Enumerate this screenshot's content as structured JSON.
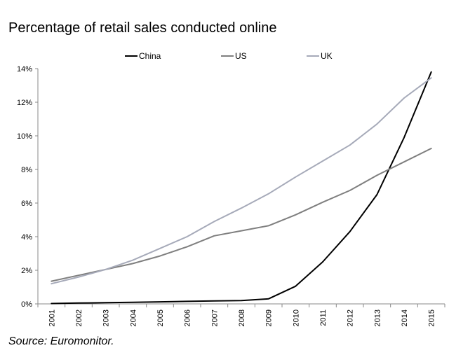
{
  "chart_data": {
    "type": "line",
    "title": "Percentage of retail sales conducted online",
    "subtitle": "",
    "xlabel": "",
    "ylabel": "",
    "categories": [
      "2001",
      "2002",
      "2003",
      "2004",
      "2005",
      "2006",
      "2007",
      "2008",
      "2009",
      "2010",
      "2011",
      "2012",
      "2013",
      "2014",
      "2015"
    ],
    "ylim": [
      0,
      14
    ],
    "yticks": [
      0,
      2,
      4,
      6,
      8,
      10,
      12,
      14
    ],
    "ytick_labels": [
      "0%",
      "2%",
      "4%",
      "6%",
      "8%",
      "10%",
      "12%",
      "14%"
    ],
    "grid": false,
    "legend_position": "top",
    "series": [
      {
        "name": "China",
        "color": "#000000",
        "values": [
          0.02,
          0.05,
          0.07,
          0.09,
          0.12,
          0.15,
          0.18,
          0.2,
          0.3,
          1.05,
          2.5,
          4.3,
          6.5,
          9.9,
          13.8
        ]
      },
      {
        "name": "US",
        "color": "#7f7f7f",
        "values": [
          1.35,
          1.7,
          2.05,
          2.4,
          2.85,
          3.4,
          4.05,
          4.35,
          4.65,
          5.3,
          6.05,
          6.75,
          7.65,
          8.45,
          9.25
        ]
      },
      {
        "name": "UK",
        "color": "#a6aab9",
        "values": [
          1.2,
          1.6,
          2.05,
          2.6,
          3.3,
          4.0,
          4.9,
          5.7,
          6.55,
          7.55,
          8.5,
          9.45,
          10.7,
          12.25,
          13.45
        ]
      }
    ]
  },
  "source": "Source: Euromonitor."
}
